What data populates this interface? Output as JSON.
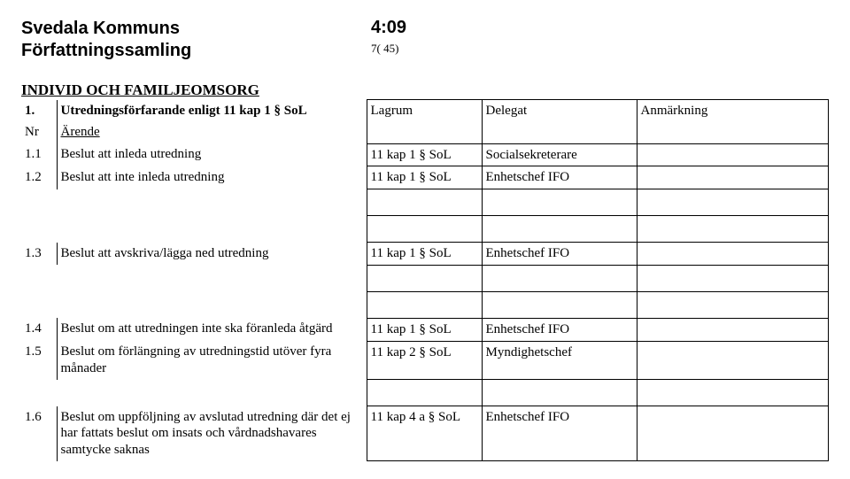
{
  "header": {
    "org_line1": "Svedala Kommuns",
    "org_line2": "Författningssamling",
    "doc_code": "4:09",
    "page_of": "7( 45)"
  },
  "section": {
    "title": "INDIVID OCH FAMILJEOMSORG"
  },
  "table": {
    "head": {
      "c0_top": "1.",
      "c1_top": "Utredningsförfarande enligt 11 kap 1 § SoL",
      "c0_bottom": "Nr",
      "c1_bottom": "Ärende",
      "c2": "Lagrum",
      "c3": "Delegat",
      "c4": "Anmärkning"
    },
    "rows": [
      {
        "nr": "1.1",
        "arende": "Beslut att inleda utredning",
        "lagrum": "11 kap 1 § SoL",
        "delegat": "Socialsekreterare",
        "anm": "",
        "gap_after": 0
      },
      {
        "nr": "1.2",
        "arende": "Beslut att inte inleda utredning",
        "lagrum": "11 kap 1 § SoL",
        "delegat": "Enhetschef IFO",
        "anm": "",
        "gap_after": 2
      },
      {
        "nr": "1.3",
        "arende": "Beslut att avskriva/lägga ned utredning",
        "lagrum": "11 kap 1 § SoL",
        "delegat": "Enhetschef IFO",
        "anm": "",
        "gap_after": 2
      },
      {
        "nr": "1.4",
        "arende": "Beslut om att utredningen inte ska föranleda åtgärd",
        "lagrum": "11 kap 1 § SoL",
        "delegat": "Enhetschef IFO",
        "anm": "",
        "gap_after": 0
      },
      {
        "nr": "1.5",
        "arende": "Beslut om förlängning av utredningstid utöver fyra månader",
        "lagrum": "11 kap 2 § SoL",
        "delegat": "Myndighetschef",
        "anm": "",
        "gap_after": 1
      },
      {
        "nr": "1.6",
        "arende": "Beslut om uppföljning av avslutad utredning där det ej har fattats beslut om insats och vårdnadshavares samtycke saknas",
        "lagrum": "11 kap 4 a § SoL",
        "delegat": "Enhetschef IFO",
        "anm": "",
        "gap_after": 0
      }
    ]
  },
  "style": {
    "body_font": "Times New Roman",
    "header_font": "Arial",
    "body_fontsize": 15,
    "header_fontsize": 20,
    "section_fontsize": 17,
    "border_color": "#000000",
    "bg_color": "#ffffff"
  }
}
